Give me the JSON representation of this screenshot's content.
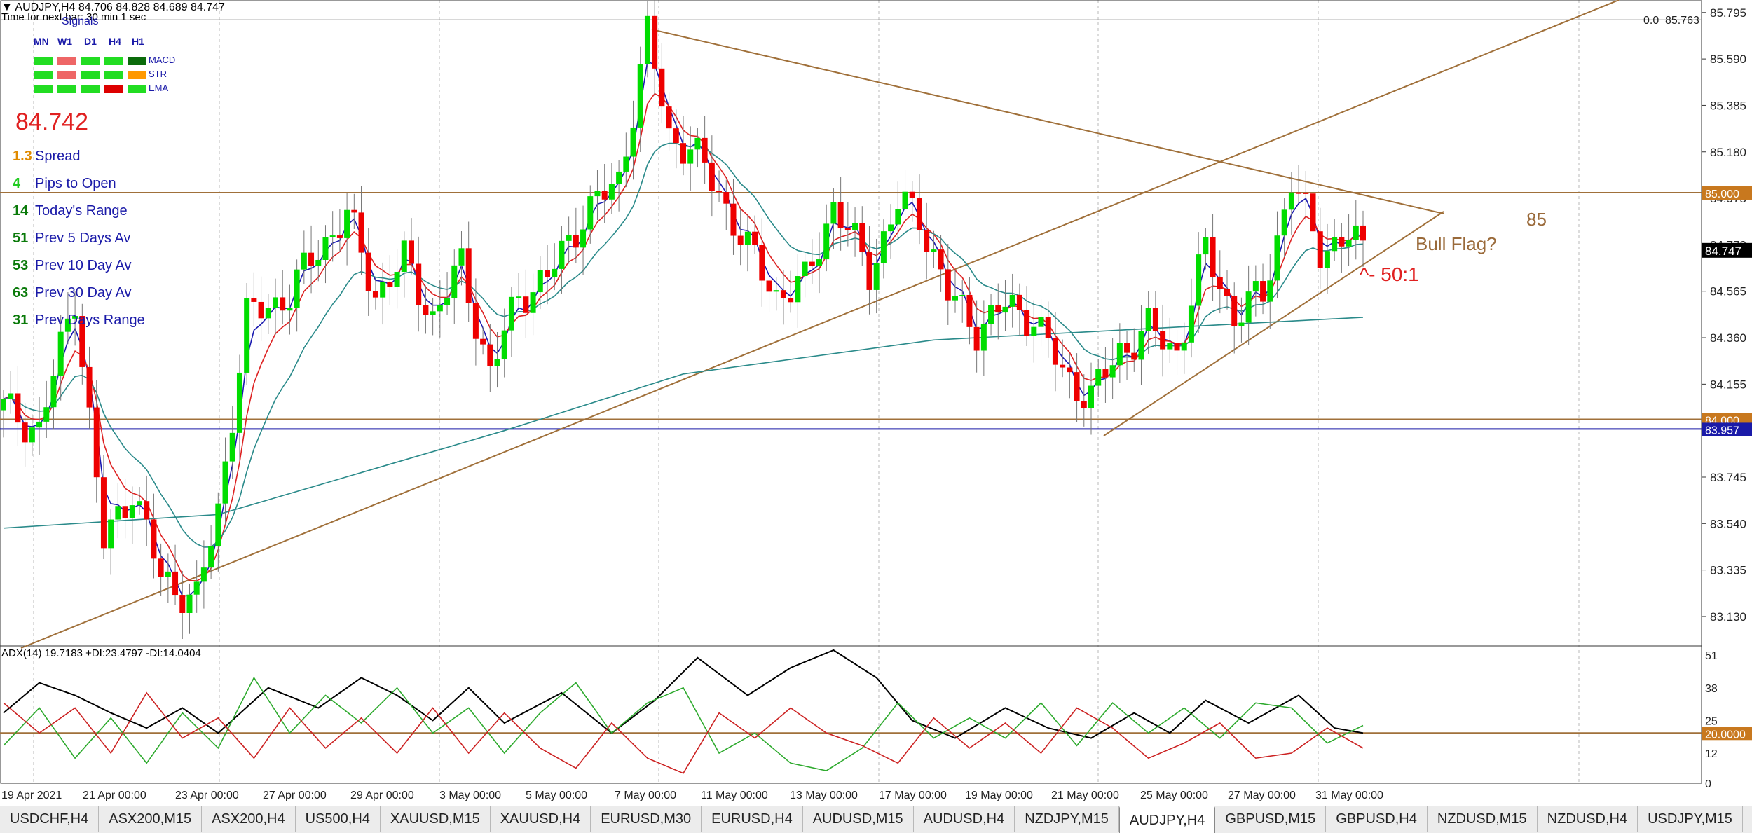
{
  "header": {
    "symbol_line": "AUDJPY,H4  84.706 84.828 84.689 84.747",
    "timer": "Time for next bar: 30 min 1 sec"
  },
  "signals": {
    "title": "Signals",
    "timeframes": [
      "MN",
      "W1",
      "D1",
      "H4",
      "H1"
    ],
    "rows": [
      {
        "name": "MACD",
        "colors": [
          "#22dd22",
          "#ee6666",
          "#22dd22",
          "#22dd22",
          "#0b6b0b"
        ]
      },
      {
        "name": "STR",
        "colors": [
          "#22dd22",
          "#ee6666",
          "#22dd22",
          "#22dd22",
          "#ff9900"
        ]
      },
      {
        "name": "EMA",
        "colors": [
          "#22dd22",
          "#22dd22",
          "#22dd22",
          "#dd0000",
          "#22dd22"
        ]
      }
    ]
  },
  "price_big": "84.742",
  "stats": [
    {
      "value": "1.3",
      "label": "Spread",
      "color": "#e08a00"
    },
    {
      "value": "4",
      "label": "Pips to Open",
      "color": "#22cc22"
    },
    {
      "value": "14",
      "label": "Today's Range",
      "color": "#0a7a0a"
    },
    {
      "value": "51",
      "label": "Prev 5 Days Av",
      "color": "#0a7a0a"
    },
    {
      "value": "53",
      "label": "Prev 10 Day Av",
      "color": "#0a7a0a"
    },
    {
      "value": "63",
      "label": "Prev 30 Day Av",
      "color": "#0a7a0a"
    },
    {
      "value": "31",
      "label": "Prev Days Range",
      "color": "#0a7a0a"
    }
  ],
  "chart_data": [
    {
      "type": "candlestick",
      "title": "AUDJPY,H4",
      "ylim": [
        83.0,
        85.85
      ],
      "y_ticks": [
        "85.795",
        "85.590",
        "85.385",
        "85.180",
        "84.975",
        "84.770",
        "84.565",
        "84.360",
        "84.155",
        "83.950",
        "83.745",
        "83.540",
        "83.335",
        "83.130"
      ],
      "x_ticks": [
        "19 Apr 2021",
        "21 Apr 00:00",
        "23 Apr 00:00",
        "27 Apr 00:00",
        "29 Apr 00:00",
        "3 May 00:00",
        "5 May 00:00",
        "7 May 00:00",
        "11 May 00:00",
        "13 May 00:00",
        "17 May 00:00",
        "19 May 00:00",
        "21 May 00:00",
        "25 May 00:00",
        "27 May 00:00",
        "31 May 00:00"
      ],
      "grid": true,
      "bull_color": "#00dd00",
      "bear_color": "#ee0000",
      "close_anchors": [
        [
          0,
          84.05
        ],
        [
          5,
          83.95
        ],
        [
          10,
          84.55
        ],
        [
          14,
          83.45
        ],
        [
          18,
          83.7
        ],
        [
          22,
          83.3
        ],
        [
          27,
          83.2
        ],
        [
          30,
          83.6
        ],
        [
          34,
          84.45
        ],
        [
          40,
          84.55
        ],
        [
          44,
          84.75
        ],
        [
          48,
          84.9
        ],
        [
          52,
          84.55
        ],
        [
          56,
          84.7
        ],
        [
          60,
          84.45
        ],
        [
          64,
          84.68
        ],
        [
          68,
          84.2
        ],
        [
          72,
          84.55
        ],
        [
          76,
          84.62
        ],
        [
          81,
          84.9
        ],
        [
          86,
          85.05
        ],
        [
          90,
          85.7
        ],
        [
          93,
          85.25
        ],
        [
          96,
          85.2
        ],
        [
          100,
          85.0
        ],
        [
          104,
          84.75
        ],
        [
          108,
          84.55
        ],
        [
          112,
          84.6
        ],
        [
          116,
          84.95
        ],
        [
          121,
          84.65
        ],
        [
          125,
          84.95
        ],
        [
          128,
          84.9
        ],
        [
          132,
          84.55
        ],
        [
          136,
          84.4
        ],
        [
          140,
          84.5
        ],
        [
          144,
          84.45
        ],
        [
          148,
          84.2
        ],
        [
          152,
          84.1
        ],
        [
          156,
          84.3
        ],
        [
          160,
          84.4
        ],
        [
          164,
          84.3
        ],
        [
          168,
          84.75
        ],
        [
          172,
          84.45
        ],
        [
          176,
          84.55
        ],
        [
          180,
          85.05
        ],
        [
          184,
          84.75
        ],
        [
          188,
          84.8
        ],
        [
          190,
          84.747
        ]
      ],
      "ema_long": [
        [
          0,
          83.52
        ],
        [
          30,
          83.58
        ],
        [
          70,
          83.95
        ],
        [
          95,
          84.2
        ],
        [
          130,
          84.35
        ],
        [
          160,
          84.4
        ],
        [
          190,
          84.45
        ]
      ],
      "horizontal_levels": [
        {
          "price": 85.763,
          "label": "85.763",
          "fib_label": "0.0"
        },
        {
          "price": 85.0,
          "label": "85.000"
        },
        {
          "price": 84.0,
          "label": "84.000"
        },
        {
          "price": 83.957,
          "label": "83.957",
          "fill": "#1a1aa8"
        }
      ],
      "current_price_label": "84.747",
      "annotations": [
        "85",
        "Bull Flag?",
        "^- 50:1"
      ]
    },
    {
      "type": "line",
      "title": "ADX(14) 19.7183 +DI:23.4797 -DI:14.0404",
      "ylim": [
        0,
        53
      ],
      "y_ticks": [
        "51",
        "38",
        "25",
        "12",
        "0"
      ],
      "level": {
        "value": 20,
        "label": "20.0000"
      },
      "series": [
        {
          "name": "ADX",
          "color": "#000000",
          "values": [
            [
              0,
              28
            ],
            [
              5,
              40
            ],
            [
              10,
              35
            ],
            [
              15,
              28
            ],
            [
              20,
              22
            ],
            [
              25,
              30
            ],
            [
              30,
              20
            ],
            [
              37,
              38
            ],
            [
              44,
              30
            ],
            [
              50,
              42
            ],
            [
              55,
              35
            ],
            [
              60,
              25
            ],
            [
              65,
              38
            ],
            [
              70,
              24
            ],
            [
              78,
              36
            ],
            [
              85,
              20
            ],
            [
              91,
              33
            ],
            [
              97,
              50
            ],
            [
              104,
              35
            ],
            [
              110,
              46
            ],
            [
              116,
              53
            ],
            [
              122,
              42
            ],
            [
              127,
              25
            ],
            [
              133,
              18
            ],
            [
              140,
              30
            ],
            [
              146,
              22
            ],
            [
              152,
              18
            ],
            [
              158,
              28
            ],
            [
              163,
              20
            ],
            [
              168,
              33
            ],
            [
              174,
              24
            ],
            [
              181,
              35
            ],
            [
              186,
              22
            ],
            [
              190,
              20
            ]
          ]
        },
        {
          "name": "+DI",
          "color": "#2eaa2e",
          "values": [
            [
              0,
              15
            ],
            [
              5,
              30
            ],
            [
              10,
              10
            ],
            [
              15,
              26
            ],
            [
              20,
              8
            ],
            [
              25,
              28
            ],
            [
              30,
              14
            ],
            [
              35,
              42
            ],
            [
              40,
              20
            ],
            [
              45,
              35
            ],
            [
              50,
              24
            ],
            [
              55,
              38
            ],
            [
              60,
              20
            ],
            [
              65,
              30
            ],
            [
              70,
              12
            ],
            [
              75,
              28
            ],
            [
              80,
              40
            ],
            [
              85,
              20
            ],
            [
              90,
              32
            ],
            [
              95,
              38
            ],
            [
              100,
              12
            ],
            [
              105,
              20
            ],
            [
              110,
              8
            ],
            [
              115,
              5
            ],
            [
              120,
              14
            ],
            [
              125,
              32
            ],
            [
              130,
              18
            ],
            [
              135,
              26
            ],
            [
              140,
              18
            ],
            [
              145,
              32
            ],
            [
              150,
              15
            ],
            [
              155,
              32
            ],
            [
              160,
              20
            ],
            [
              165,
              30
            ],
            [
              170,
              18
            ],
            [
              175,
              32
            ],
            [
              180,
              30
            ],
            [
              185,
              16
            ],
            [
              190,
              23
            ]
          ]
        },
        {
          "name": "-DI",
          "color": "#cc2222",
          "values": [
            [
              0,
              32
            ],
            [
              5,
              20
            ],
            [
              10,
              30
            ],
            [
              15,
              12
            ],
            [
              20,
              36
            ],
            [
              25,
              18
            ],
            [
              30,
              26
            ],
            [
              35,
              10
            ],
            [
              40,
              30
            ],
            [
              45,
              14
            ],
            [
              50,
              26
            ],
            [
              55,
              12
            ],
            [
              60,
              30
            ],
            [
              65,
              12
            ],
            [
              70,
              28
            ],
            [
              75,
              14
            ],
            [
              80,
              6
            ],
            [
              85,
              24
            ],
            [
              90,
              10
            ],
            [
              95,
              4
            ],
            [
              100,
              28
            ],
            [
              105,
              18
            ],
            [
              110,
              30
            ],
            [
              115,
              20
            ],
            [
              120,
              15
            ],
            [
              125,
              8
            ],
            [
              130,
              26
            ],
            [
              135,
              14
            ],
            [
              140,
              24
            ],
            [
              145,
              12
            ],
            [
              150,
              30
            ],
            [
              155,
              22
            ],
            [
              160,
              10
            ],
            [
              165,
              16
            ],
            [
              170,
              24
            ],
            [
              175,
              10
            ],
            [
              180,
              12
            ],
            [
              185,
              22
            ],
            [
              190,
              14
            ]
          ]
        }
      ]
    }
  ],
  "tabs": [
    "USDCHF,H4",
    "ASX200,M15",
    "ASX200,H4",
    "US500,H4",
    "XAUUSD,M15",
    "XAUUSD,H4",
    "EURUSD,M30",
    "EURUSD,H4",
    "AUDUSD,M15",
    "AUDUSD,H4",
    "NZDJPY,M15",
    "AUDJPY,H4",
    "GBPUSD,M15",
    "GBPUSD,H4",
    "NZDUSD,M15",
    "NZDUSD,H4",
    "USDJPY,M15",
    "U"
  ],
  "active_tab": "AUDJPY,H4"
}
